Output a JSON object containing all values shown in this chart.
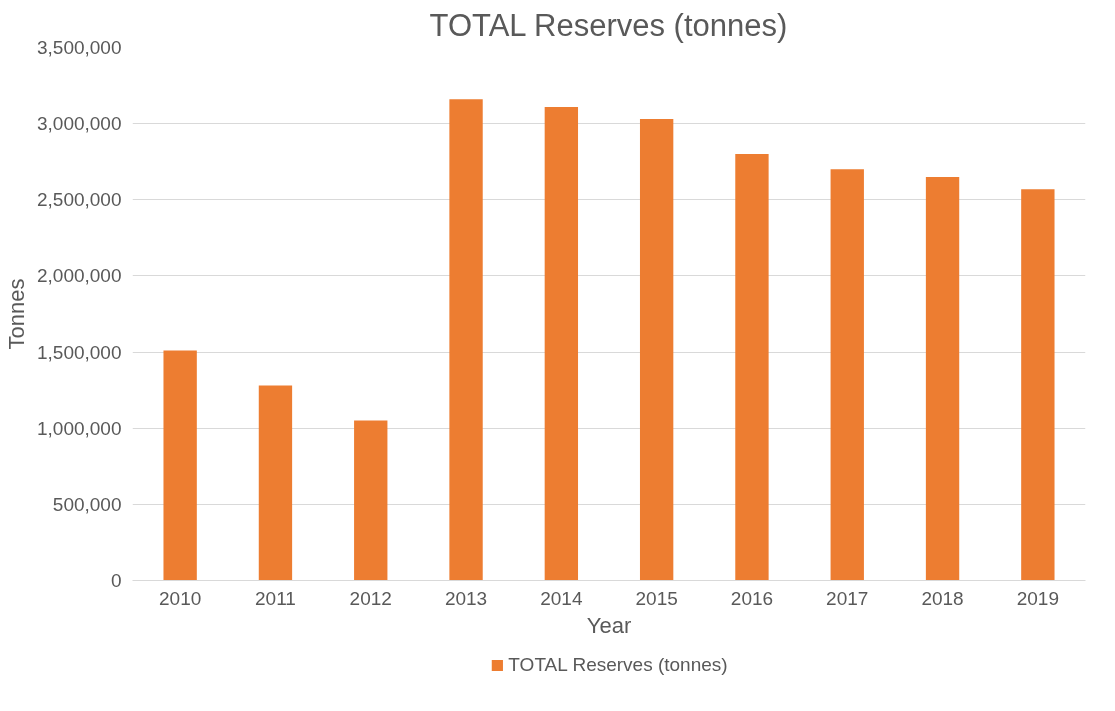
{
  "chart_data": {
    "type": "bar",
    "title": "TOTAL Reserves (tonnes)",
    "xlabel": "Year",
    "ylabel": "Tonnes",
    "categories": [
      "2010",
      "2011",
      "2012",
      "2013",
      "2014",
      "2015",
      "2016",
      "2017",
      "2018",
      "2019"
    ],
    "series": [
      {
        "name": "TOTAL Reserves (tonnes)",
        "color": "#ed7d31",
        "values": [
          1510000,
          1280000,
          1050000,
          3160000,
          3110000,
          3030000,
          2800000,
          2700000,
          2650000,
          2570000
        ]
      }
    ],
    "ylim": [
      0,
      3500000
    ],
    "yticks": [
      {
        "value": 0,
        "label": "0"
      },
      {
        "value": 500000,
        "label": "500,000"
      },
      {
        "value": 1000000,
        "label": "1,000,000"
      },
      {
        "value": 1500000,
        "label": "1,500,000"
      },
      {
        "value": 2000000,
        "label": "2,000,000"
      },
      {
        "value": 2500000,
        "label": "2,500,000"
      },
      {
        "value": 3000000,
        "label": "3,000,000"
      },
      {
        "value": 3500000,
        "label": "3,500,000"
      }
    ],
    "grid": "y",
    "legend": "bottom"
  }
}
